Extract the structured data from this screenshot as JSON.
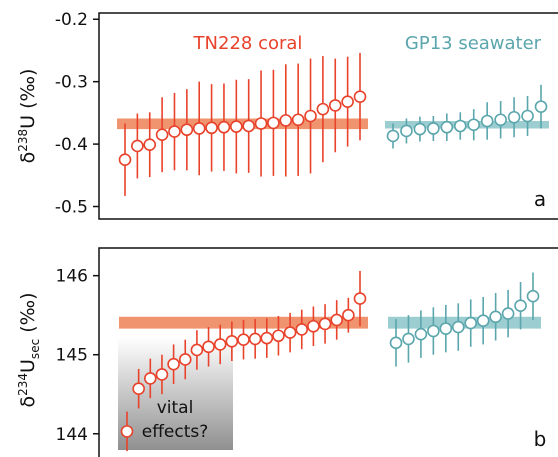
{
  "colors": {
    "coral": "#e8422b",
    "coral_band": "#f0936f",
    "seawater": "#5aa6ac",
    "seawater_band": "#9ccdd1",
    "axis": "#111111"
  },
  "chart_data": [
    {
      "type": "scatter",
      "panel_letter": "a",
      "ylabel_base": "δ",
      "ylabel_sup": "238",
      "ylabel_main": "U (‰)",
      "ylim": [
        -0.52,
        -0.19
      ],
      "yticks": [
        -0.2,
        -0.3,
        -0.4,
        -0.5
      ],
      "ytick_labels": [
        "-0.2",
        "-0.3",
        "-0.4",
        "-0.5"
      ],
      "series": [
        {
          "name": "TN228 coral",
          "values": [
            -0.425,
            -0.403,
            -0.401,
            -0.385,
            -0.38,
            -0.377,
            -0.375,
            -0.374,
            -0.373,
            -0.372,
            -0.371,
            -0.367,
            -0.366,
            -0.362,
            -0.361,
            -0.355,
            -0.344,
            -0.338,
            -0.332,
            -0.324
          ],
          "errors": [
            0.058,
            0.052,
            0.052,
            0.06,
            0.062,
            0.065,
            0.075,
            0.07,
            0.07,
            0.075,
            0.075,
            0.085,
            0.085,
            0.09,
            0.09,
            0.092,
            0.085,
            0.075,
            0.072,
            0.07
          ],
          "band": [
            -0.376,
            -0.359
          ]
        },
        {
          "name": "GP13 seawater",
          "values": [
            -0.387,
            -0.379,
            -0.376,
            -0.375,
            -0.373,
            -0.371,
            -0.369,
            -0.363,
            -0.361,
            -0.357,
            -0.355,
            -0.34
          ],
          "errors": [
            0.02,
            0.02,
            0.02,
            0.02,
            0.022,
            0.022,
            0.025,
            0.03,
            0.03,
            0.032,
            0.032,
            0.035
          ],
          "band": [
            -0.375,
            -0.363
          ]
        }
      ]
    },
    {
      "type": "scatter",
      "panel_letter": "b",
      "ylabel_base": "δ",
      "ylabel_sup": "234",
      "ylabel_main": "U",
      "ylabel_sub": "sec",
      "ylabel_unit": " (‰)",
      "ylim": [
        143.63,
        146.35
      ],
      "yticks": [
        146,
        145,
        144
      ],
      "ytick_labels": [
        "146",
        "145",
        "144"
      ],
      "annotation": [
        "vital",
        "effects?"
      ],
      "series": [
        {
          "name": "TN228 coral",
          "values": [
            144.03,
            144.57,
            144.7,
            144.75,
            144.88,
            144.94,
            145.06,
            145.1,
            145.13,
            145.17,
            145.19,
            145.2,
            145.21,
            145.24,
            145.28,
            145.32,
            145.36,
            145.39,
            145.44,
            145.5,
            145.71
          ],
          "errors": [
            0.25,
            0.25,
            0.25,
            0.25,
            0.25,
            0.25,
            0.25,
            0.25,
            0.25,
            0.25,
            0.25,
            0.25,
            0.25,
            0.25,
            0.25,
            0.25,
            0.25,
            0.25,
            0.25,
            0.22,
            0.35
          ],
          "band": [
            145.33,
            145.48
          ]
        },
        {
          "name": "GP13 seawater",
          "values": [
            145.15,
            145.2,
            145.26,
            145.3,
            145.33,
            145.35,
            145.4,
            145.43,
            145.48,
            145.52,
            145.62,
            145.74
          ],
          "errors": [
            0.3,
            0.3,
            0.3,
            0.3,
            0.3,
            0.3,
            0.3,
            0.3,
            0.3,
            0.3,
            0.3,
            0.3
          ],
          "band": [
            145.33,
            145.48
          ]
        }
      ]
    }
  ]
}
